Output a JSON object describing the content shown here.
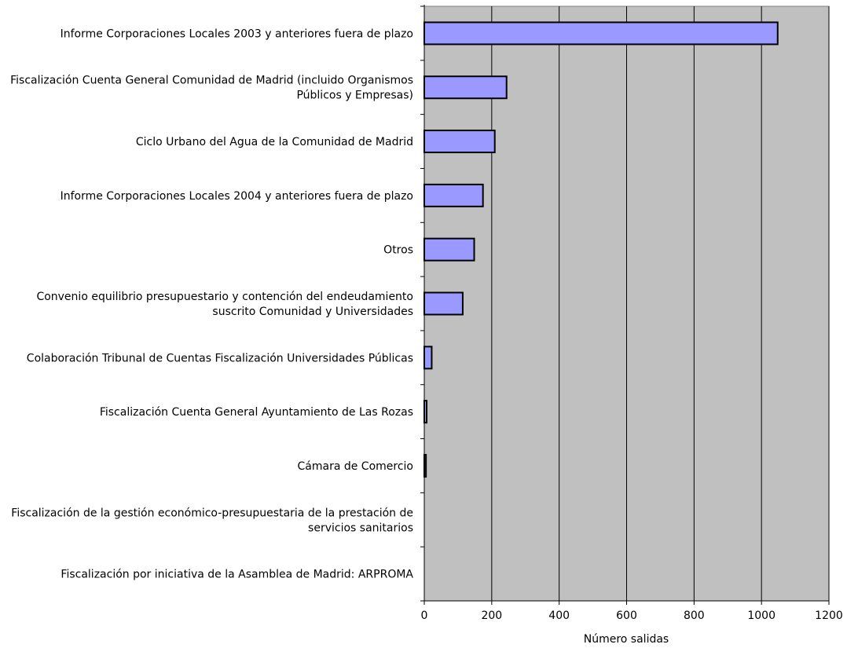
{
  "chart_data": {
    "type": "bar",
    "orientation": "horizontal",
    "categories": [
      [
        "Informe Corporaciones Locales 2003 y anteriores fuera de plazo"
      ],
      [
        "Fiscalización Cuenta General Comunidad de Madrid (incluido Organismos",
        "Públicos y Empresas)"
      ],
      [
        "Ciclo Urbano del Agua de la Comunidad de Madrid"
      ],
      [
        "Informe Corporaciones Locales 2004 y anteriores fuera de plazo"
      ],
      [
        "Otros"
      ],
      [
        "Convenio equilibrio presupuestario y contención del endeudamiento",
        "suscrito Comunidad y Universidades"
      ],
      [
        "Colaboración Tribunal de Cuentas Fiscalización Universidades Públicas"
      ],
      [
        "Fiscalización Cuenta General Ayuntamiento de Las Rozas"
      ],
      [
        "Cámara de Comercio"
      ],
      [
        "Fiscalización de la gestión económico-presupuestaria de la prestación de",
        "servicios sanitarios"
      ],
      [
        "Fiscalización por iniciativa de la Asamblea de Madrid: ARPROMA"
      ]
    ],
    "values": [
      1048,
      244,
      209,
      174,
      148,
      114,
      22,
      7,
      5,
      0,
      0
    ],
    "xlabel": "Número salidas",
    "xlim": [
      0,
      1200
    ],
    "xticks": [
      0,
      200,
      400,
      600,
      800,
      1000,
      1200
    ],
    "grid": "vertical",
    "legend": "none",
    "colors": {
      "bar_fill": "#9999ff",
      "bar_stroke": "#000000",
      "plot_background": "#c0c0c0",
      "gridline": "#000000"
    }
  }
}
